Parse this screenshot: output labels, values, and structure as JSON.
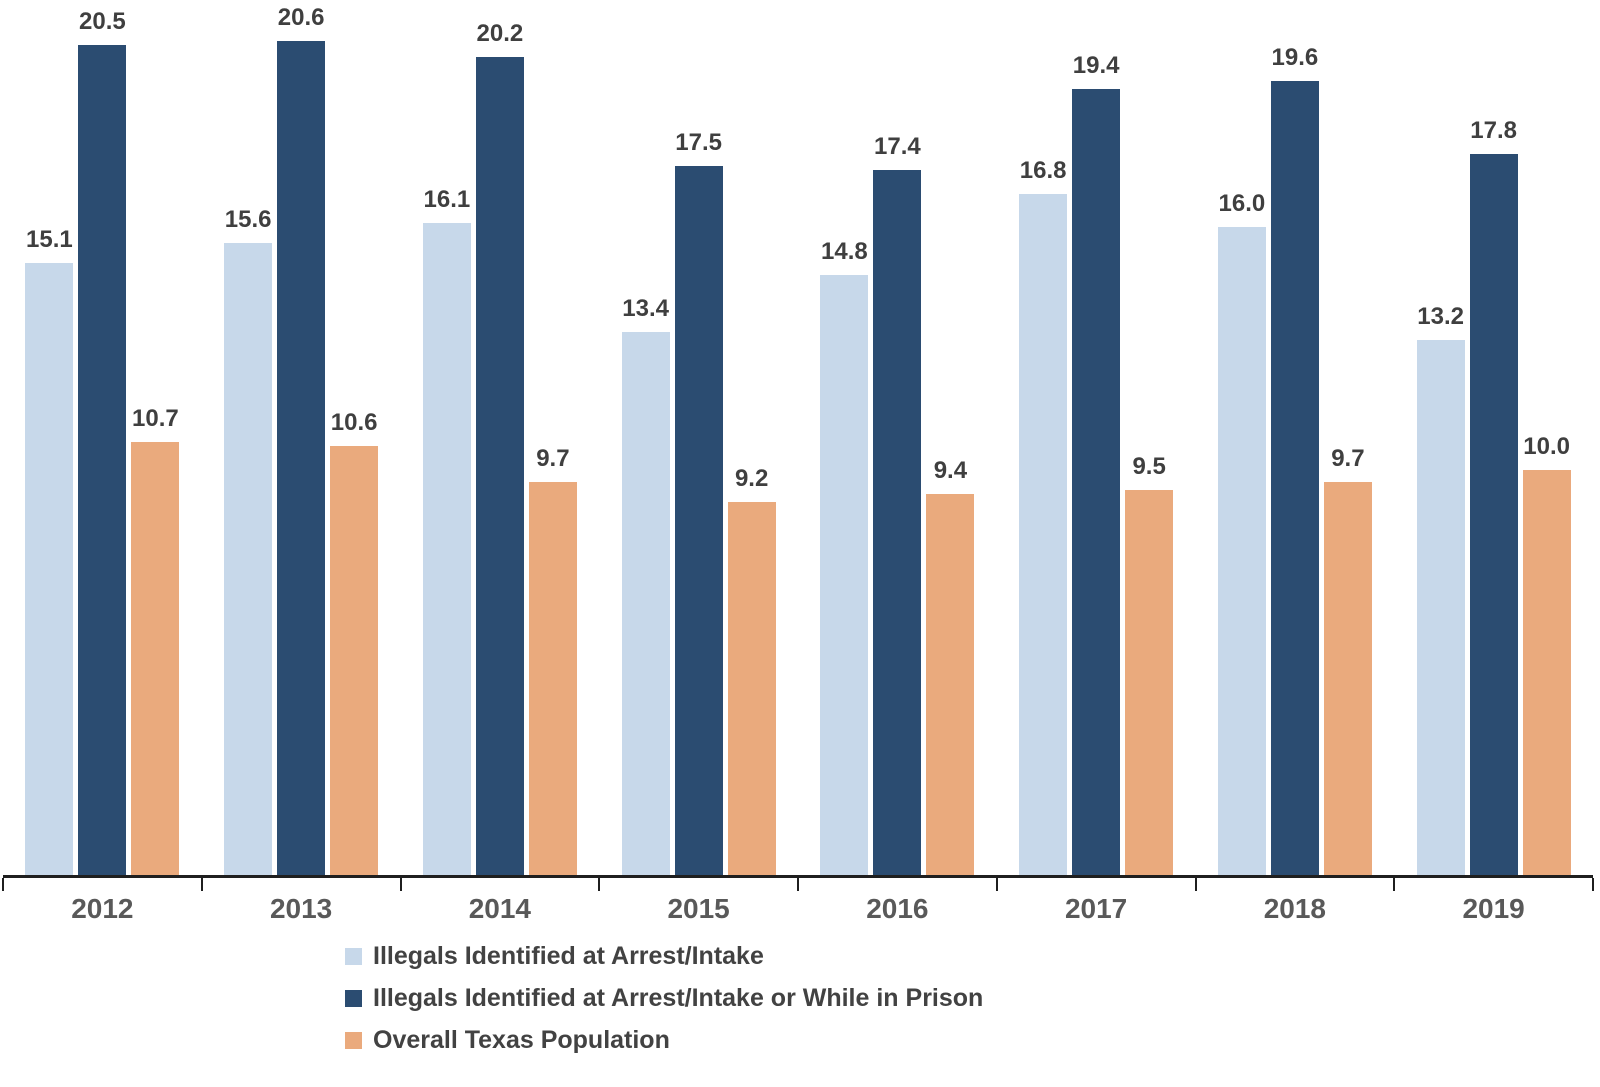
{
  "chart_data": {
    "type": "bar",
    "title": "",
    "xlabel": "",
    "ylabel": "",
    "categories": [
      "2012",
      "2013",
      "2014",
      "2015",
      "2016",
      "2017",
      "2018",
      "2019"
    ],
    "series": [
      {
        "name": "Illegals Identified at Arrest/Intake",
        "color": "#c7d8ea",
        "values": [
          15.1,
          15.6,
          16.1,
          13.4,
          14.8,
          16.8,
          16.0,
          13.2
        ]
      },
      {
        "name": "Illegals Identified at Arrest/Intake or While in Prison",
        "color": "#2b4c71",
        "values": [
          20.5,
          20.6,
          20.2,
          17.5,
          17.4,
          19.4,
          19.6,
          17.8
        ]
      },
      {
        "name": "Overall Texas Population",
        "color": "#eaaa7d",
        "values": [
          10.7,
          10.6,
          9.7,
          9.2,
          9.4,
          9.5,
          9.7,
          10.0
        ]
      }
    ],
    "ylim": [
      0,
      21.6
    ],
    "grid": false,
    "data_labels": true,
    "data_label_decimals": 1,
    "legend_position": "bottom-left",
    "axis_color": "#1f1f1f",
    "value_label_color": "#3f3f3f",
    "category_label_color": "#595959",
    "legend_text_color": "#424242"
  }
}
